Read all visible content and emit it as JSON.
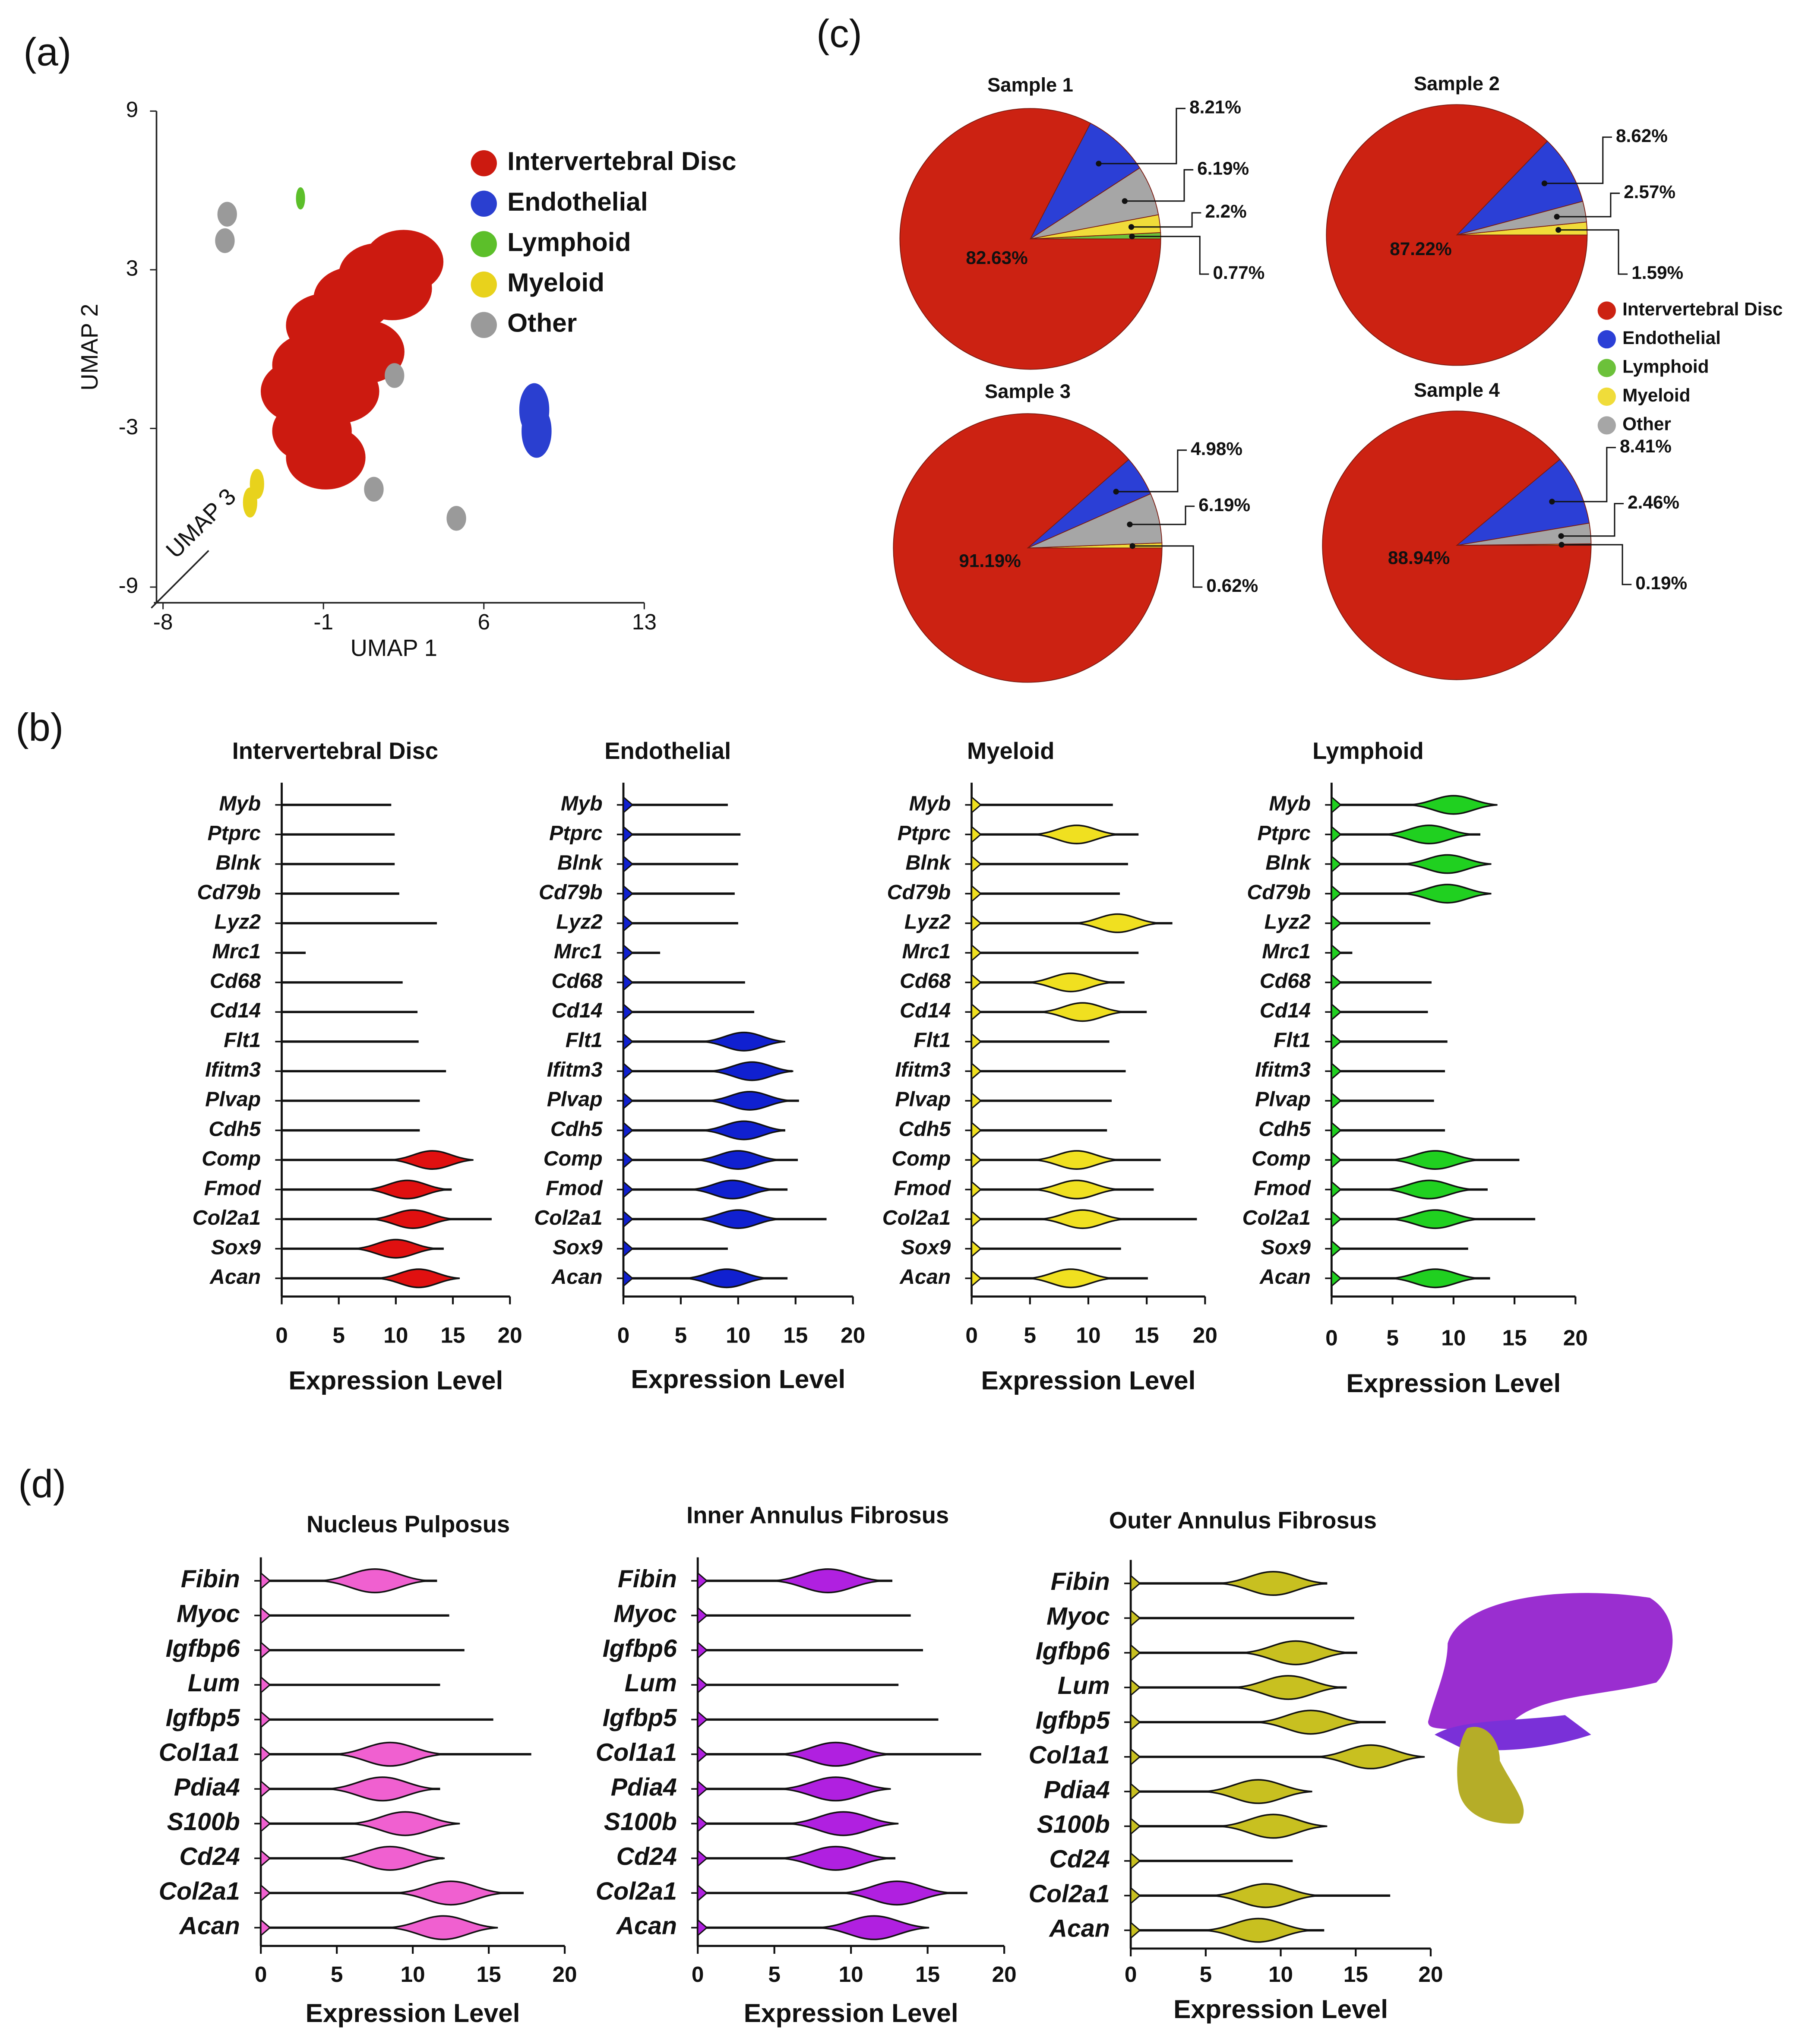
{
  "panels": [
    "(a)",
    "(b)",
    "(c)",
    "(d)"
  ],
  "chart_data": [
    {
      "type": "scatter",
      "xlabel": "UMAP 1",
      "ylabel": "UMAP 2",
      "zlabel": "UMAP 3",
      "xlim": [
        -8,
        13
      ],
      "xticks": [
        -8,
        -1,
        6,
        13
      ],
      "ylim": [
        -9,
        9
      ],
      "yticks": [
        -9,
        -3,
        3,
        9
      ],
      "series": [
        {
          "name": "Intervertebral Disc",
          "color": "#cc1a10",
          "x": [
            1.4,
            0.3,
            -0.9,
            -1.5,
            -2.0,
            -0.3,
            -1.5,
            -0.9,
            2.0,
            2.5,
            0.8
          ],
          "y": [
            2.8,
            1.9,
            0.9,
            -0.6,
            -1.6,
            -1.6,
            -3.1,
            -4.1,
            2.3,
            3.3,
            -0.1
          ]
        },
        {
          "name": "Endothelial",
          "color": "#2a3fd0",
          "x": [
            8.2,
            8.3
          ],
          "y": [
            -2.3,
            -3.1
          ]
        },
        {
          "name": "Lymphoid",
          "color": "#5cbf2a",
          "x": [
            -2.0
          ],
          "y": [
            5.7
          ]
        },
        {
          "name": "Myeloid",
          "color": "#e8d21c",
          "x": [
            -3.9,
            -4.2
          ],
          "y": [
            -5.1,
            -5.8
          ]
        },
        {
          "name": "Other",
          "color": "#9a9a9a",
          "x": [
            -5.2,
            -5.3,
            1.2,
            4.8,
            2.1
          ],
          "y": [
            5.1,
            4.1,
            -5.3,
            -6.4,
            -1.0
          ]
        }
      ]
    },
    {
      "type": "pie",
      "categories": [
        "Intervertebral Disc",
        "Endothelial",
        "Lymphoid",
        "Myeloid",
        "Other"
      ],
      "colors": [
        "#cc2212",
        "#2b3fd6",
        "#6cc13a",
        "#f0dc3a",
        "#a6a6a6"
      ],
      "samples": [
        {
          "title": "Sample 1",
          "values": [
            82.63,
            8.21,
            0.77,
            2.2,
            6.19
          ],
          "value_labels": [
            "82.63%",
            "8.21%",
            "0.77%",
            "2.2%",
            "6.19%"
          ]
        },
        {
          "title": "Sample 2",
          "values": [
            87.22,
            8.62,
            null,
            1.59,
            2.57
          ],
          "value_labels": [
            "87.22%",
            "8.62%",
            null,
            "1.59%",
            "2.57%"
          ]
        },
        {
          "title": "Sample 3",
          "values": [
            91.19,
            4.98,
            null,
            0.62,
            6.19
          ],
          "value_labels": [
            "91.19%",
            "4.98%",
            null,
            "0.62%",
            "6.19%"
          ]
        },
        {
          "title": "Sample 4",
          "values": [
            88.94,
            8.41,
            null,
            0.19,
            2.46
          ],
          "value_labels": [
            "88.94%",
            "8.41%",
            null,
            "0.19%",
            "2.46%"
          ]
        }
      ]
    },
    {
      "type": "violin",
      "title": "Intervertebral Disc",
      "color": "#e01010",
      "xlabel": "Expression Level",
      "xlim": [
        0,
        20
      ],
      "xticks": [
        0,
        5,
        10,
        15,
        20
      ],
      "categories": [
        "Myb",
        "Ptprc",
        "Blnk",
        "Cd79b",
        "Lyz2",
        "Mrc1",
        "Cd68",
        "Cd14",
        "Flt1",
        "Ifitm3",
        "Plvap",
        "Cdh5",
        "Comp",
        "Fmod",
        "Col2a1",
        "Sox9",
        "Acan"
      ],
      "values": [
        9.6,
        9.9,
        9.9,
        10.3,
        13.6,
        2.1,
        10.6,
        11.9,
        12,
        14.4,
        12.1,
        12.1,
        15.7,
        14.9,
        18.4,
        14.2,
        14.9
      ],
      "modes": [
        null,
        null,
        null,
        null,
        null,
        null,
        null,
        null,
        null,
        null,
        null,
        null,
        13.2,
        11,
        11.5,
        10,
        12
      ]
    },
    {
      "type": "violin",
      "title": "Endothelial",
      "color": "#1020d0",
      "xlabel": "Expression Level",
      "xlim": [
        0,
        20
      ],
      "xticks": [
        0,
        5,
        10,
        15,
        20
      ],
      "categories": [
        "Myb",
        "Ptprc",
        "Blnk",
        "Cd79b",
        "Lyz2",
        "Mrc1",
        "Cd68",
        "Cd14",
        "Flt1",
        "Ifitm3",
        "Plvap",
        "Cdh5",
        "Comp",
        "Fmod",
        "Col2a1",
        "Sox9",
        "Acan"
      ],
      "values": [
        9.1,
        10.2,
        10,
        9.7,
        10,
        3.2,
        10.6,
        11.4,
        13.6,
        14.7,
        15.3,
        14.1,
        15.2,
        14.3,
        17.7,
        9.1,
        14.3
      ],
      "modes": [
        null,
        null,
        null,
        null,
        null,
        null,
        null,
        null,
        10.5,
        11.2,
        11,
        10.5,
        10,
        9.5,
        10,
        null,
        9
      ]
    },
    {
      "type": "violin",
      "title": "Myeloid",
      "color": "#f0e020",
      "xlabel": "Expression Level",
      "xlim": [
        0,
        20
      ],
      "xticks": [
        0,
        5,
        10,
        15,
        20
      ],
      "categories": [
        "Myb",
        "Ptprc",
        "Blnk",
        "Cd79b",
        "Lyz2",
        "Mrc1",
        "Cd68",
        "Cd14",
        "Flt1",
        "Ifitm3",
        "Plvap",
        "Cdh5",
        "Comp",
        "Fmod",
        "Col2a1",
        "Sox9",
        "Acan"
      ],
      "values": [
        12.1,
        14.3,
        13.4,
        12.7,
        17.2,
        14.3,
        13.1,
        15,
        11.8,
        13.2,
        12,
        11.6,
        16.2,
        15.6,
        19.3,
        12.8,
        15.1
      ],
      "modes": [
        null,
        9,
        null,
        null,
        12.5,
        null,
        8.5,
        9.5,
        null,
        null,
        null,
        null,
        9,
        9,
        9.5,
        null,
        8.5
      ]
    },
    {
      "type": "violin",
      "title": "Lymphoid",
      "color": "#20d020",
      "xlabel": "Expression Level",
      "xlim": [
        0,
        20
      ],
      "xticks": [
        0,
        5,
        10,
        15,
        20
      ],
      "categories": [
        "Myb",
        "Ptprc",
        "Blnk",
        "Cd79b",
        "Lyz2",
        "Mrc1",
        "Cd68",
        "Cd14",
        "Flt1",
        "Ifitm3",
        "Plvap",
        "Cdh5",
        "Comp",
        "Fmod",
        "Col2a1",
        "Sox9",
        "Acan"
      ],
      "values": [
        12,
        12.2,
        12.4,
        12.1,
        8.1,
        1.7,
        8.2,
        7.9,
        9.5,
        9.3,
        8.4,
        9.3,
        15.4,
        12.8,
        16.7,
        11.2,
        13
      ],
      "modes": [
        10,
        8,
        9.5,
        9.5,
        null,
        null,
        null,
        null,
        null,
        null,
        null,
        null,
        8.5,
        8,
        8.5,
        null,
        8.5
      ]
    },
    {
      "type": "violin",
      "title": "Nucleus Pulposus",
      "color": "#f060d0",
      "xlabel": "Expression Level",
      "xlim": [
        0,
        20
      ],
      "xticks": [
        0,
        5,
        10,
        15,
        20
      ],
      "categories": [
        "Fibin",
        "Myoc",
        "Igfbp6",
        "Lum",
        "Igfbp5",
        "Col1a1",
        "Pdia4",
        "S100b",
        "Cd24",
        "Col2a1",
        "Acan"
      ],
      "values": [
        11.6,
        12.4,
        13.4,
        11.8,
        15.3,
        17.8,
        11.8,
        12.6,
        12,
        17.3,
        14
      ],
      "modes": [
        7.5,
        null,
        null,
        null,
        null,
        8.5,
        8,
        9.5,
        8.5,
        12.5,
        12
      ]
    },
    {
      "type": "violin",
      "title": "Inner Annulus Fibrosus",
      "color": "#b020e0",
      "xlabel": "Expression Level",
      "xlim": [
        0,
        20
      ],
      "xticks": [
        0,
        5,
        10,
        15,
        20
      ],
      "categories": [
        "Fibin",
        "Myoc",
        "Igfbp6",
        "Lum",
        "Igfbp5",
        "Col1a1",
        "Pdia4",
        "S100b",
        "Cd24",
        "Col2a1",
        "Acan"
      ],
      "values": [
        12.7,
        13.9,
        14.7,
        13.1,
        15.7,
        18.5,
        11.9,
        12.2,
        12.9,
        17.6,
        14.6
      ],
      "modes": [
        8.5,
        null,
        null,
        null,
        null,
        9,
        9,
        9.5,
        9,
        13,
        11.5
      ]
    },
    {
      "type": "violin",
      "title": "Outer Annulus Fibrosus",
      "color": "#c8c020",
      "xlabel": "Expression Level",
      "xlim": [
        0,
        20
      ],
      "xticks": [
        0,
        5,
        10,
        15,
        20
      ],
      "categories": [
        "Fibin",
        "Myoc",
        "Igfbp6",
        "Lum",
        "Igfbp5",
        "Col1a1",
        "Pdia4",
        "S100b",
        "Cd24",
        "Col2a1",
        "Acan"
      ],
      "values": [
        13.1,
        14.9,
        15.1,
        14.4,
        17,
        18.4,
        11.7,
        12.3,
        10.8,
        17.3,
        12.9
      ],
      "modes": [
        9.5,
        null,
        11,
        10.5,
        12,
        16,
        8.5,
        9.5,
        null,
        9,
        8.5
      ]
    }
  ]
}
